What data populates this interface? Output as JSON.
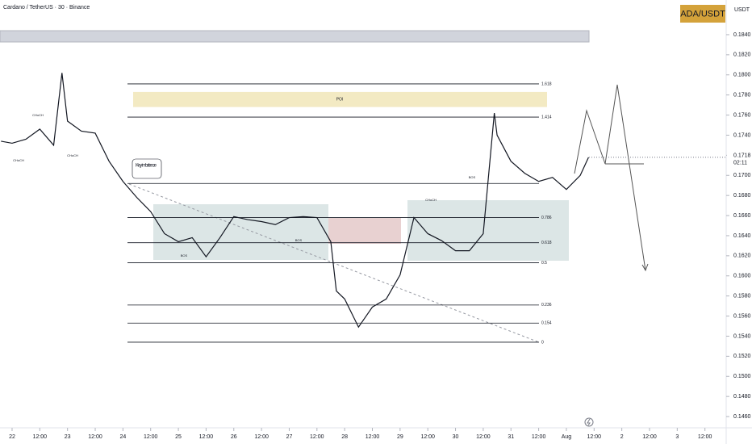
{
  "chart_data": {
    "type": "line",
    "title": "Cardano / TetherUS · 30 · Binance",
    "symbol_badge": "ADA/USDT",
    "currency": "USDT",
    "countdown": "02:11",
    "last_price": {
      "value": 0.1718,
      "label": "0.1718"
    },
    "x": [
      -0.2,
      0,
      0.25,
      0.5,
      0.75,
      0.9,
      1,
      1.25,
      1.5,
      1.75,
      2,
      2.25,
      2.5,
      2.75,
      3,
      3.25,
      3.5,
      3.75,
      4,
      4.25,
      4.5,
      4.75,
      5,
      5.25,
      5.5,
      5.75,
      5.85,
      6,
      6.25,
      6.5,
      6.75,
      7,
      7.25,
      7.5,
      7.75,
      8,
      8.25,
      8.5,
      8.7,
      8.75,
      9,
      9.25,
      9.5,
      9.75,
      10,
      10.25,
      10.4
    ],
    "series": [
      {
        "name": "Cardano / TetherUS",
        "color": "#131722",
        "values": [
          0.1734,
          0.1732,
          0.1736,
          0.1746,
          0.173,
          0.1802,
          0.1754,
          0.1744,
          0.1742,
          0.1714,
          0.1694,
          0.1678,
          0.1664,
          0.1642,
          0.1634,
          0.1638,
          0.1619,
          0.1638,
          0.1659,
          0.1656,
          0.1654,
          0.1651,
          0.1658,
          0.1659,
          0.1658,
          0.1634,
          0.1585,
          0.1577,
          0.1549,
          0.1569,
          0.1577,
          0.1601,
          0.1658,
          0.1642,
          0.1635,
          0.1625,
          0.1625,
          0.1642,
          0.1762,
          0.174,
          0.1714,
          0.1702,
          0.1694,
          0.1698,
          0.1686,
          0.17,
          0.1718
        ]
      }
    ],
    "xlim": [
      -0.218,
      12.883
    ],
    "xticks": [
      {
        "value": 0,
        "label": "22"
      },
      {
        "value": 0.5,
        "label": "12:00"
      },
      {
        "value": 1,
        "label": "23"
      },
      {
        "value": 1.5,
        "label": "12:00"
      },
      {
        "value": 2,
        "label": "24"
      },
      {
        "value": 2.5,
        "label": "12:00"
      },
      {
        "value": 3,
        "label": "25"
      },
      {
        "value": 3.5,
        "label": "12:00"
      },
      {
        "value": 4,
        "label": "26"
      },
      {
        "value": 4.5,
        "label": "12:00"
      },
      {
        "value": 5,
        "label": "27"
      },
      {
        "value": 5.5,
        "label": "12:00"
      },
      {
        "value": 6,
        "label": "28"
      },
      {
        "value": 6.5,
        "label": "12:00"
      },
      {
        "value": 7,
        "label": "29"
      },
      {
        "value": 7.5,
        "label": "12:00"
      },
      {
        "value": 8,
        "label": "30"
      },
      {
        "value": 8.5,
        "label": "12:00"
      },
      {
        "value": 9,
        "label": "31"
      },
      {
        "value": 9.5,
        "label": "12:00"
      },
      {
        "value": 10,
        "label": "Aug"
      },
      {
        "value": 10.5,
        "label": "12:00"
      },
      {
        "value": 11,
        "label": "2"
      },
      {
        "value": 11.5,
        "label": "12:00"
      },
      {
        "value": 12,
        "label": "3"
      },
      {
        "value": 12.5,
        "label": "12:00"
      }
    ],
    "ylim": [
      0.14488,
      0.18745
    ],
    "yticks": [
      {
        "value": 0.146,
        "label": "0.1460"
      },
      {
        "value": 0.148,
        "label": "0.1480"
      },
      {
        "value": 0.15,
        "label": "0.1500"
      },
      {
        "value": 0.152,
        "label": "0.1520"
      },
      {
        "value": 0.154,
        "label": "0.1540"
      },
      {
        "value": 0.156,
        "label": "0.1560"
      },
      {
        "value": 0.158,
        "label": "0.1580"
      },
      {
        "value": 0.16,
        "label": "0.1600"
      },
      {
        "value": 0.162,
        "label": "0.1620"
      },
      {
        "value": 0.164,
        "label": "0.1640"
      },
      {
        "value": 0.166,
        "label": "0.1660"
      },
      {
        "value": 0.168,
        "label": "0.1680"
      },
      {
        "value": 0.17,
        "label": "0.1700"
      },
      {
        "value": 0.172,
        "label": "0.1720"
      },
      {
        "value": 0.174,
        "label": "0.1740"
      },
      {
        "value": 0.176,
        "label": "0.1760"
      },
      {
        "value": 0.178,
        "label": "0.1780"
      },
      {
        "value": 0.18,
        "label": "0.1800"
      },
      {
        "value": 0.182,
        "label": "0.1820"
      },
      {
        "value": 0.184,
        "label": "0.1840"
      }
    ],
    "fib_levels": [
      {
        "value": 0.1791,
        "label": "1.618"
      },
      {
        "value": 0.1758,
        "label": "1.414"
      },
      {
        "value": 0.1692
      },
      {
        "value": 0.1658,
        "label": "0.786"
      },
      {
        "value": 0.1633,
        "label": "0.618"
      },
      {
        "value": 0.1613,
        "label": "0.5"
      },
      {
        "value": 0.1571,
        "label": "0.236"
      },
      {
        "value": 0.1553,
        "label": "0.154"
      },
      {
        "value": 0.1534,
        "label": "0"
      }
    ],
    "poi": {
      "label": "POI",
      "top": 0.1783,
      "bottom": 0.1768
    },
    "annotations": [
      "CHoCH",
      "CHoCH",
      "CHoCH",
      "Key imbalance",
      "BOS",
      "BOS",
      "CHoCH",
      "BOS"
    ]
  }
}
